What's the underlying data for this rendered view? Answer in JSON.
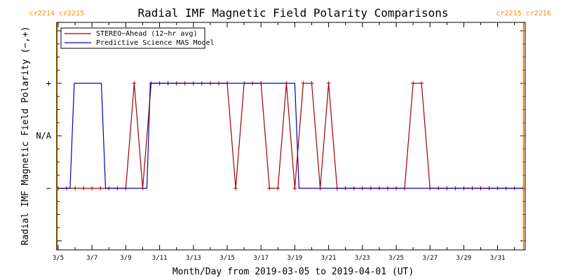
{
  "chart_data": {
    "type": "line",
    "title": "Radial IMF Magnetic Field Polarity Comparisons",
    "xlabel": "Month/Day from 2019-03-05 to 2019-04-01 (UT)",
    "ylabel": "Radial IMF Magnetic Field Polarity (−,+)",
    "ytick_labels": [
      "−",
      "N/A",
      "+"
    ],
    "ytick_values": [
      -1,
      0,
      1
    ],
    "ylim": [
      -2,
      2
    ],
    "xlim": [
      0,
      27.6
    ],
    "xtick_values": [
      0,
      2,
      4,
      6,
      8,
      10,
      12,
      14,
      16,
      18,
      20,
      22,
      24,
      26
    ],
    "xtick_labels": [
      "3/5",
      "3/7",
      "3/9",
      "3/11",
      "3/13",
      "3/15",
      "3/17",
      "3/19",
      "3/21",
      "3/23",
      "3/25",
      "3/27",
      "3/29",
      "3/31"
    ],
    "x_unit": "days from 2019-03-05",
    "carrington_markers": [
      {
        "x": 0,
        "label_left": "cr2214",
        "label_right": "cr2215",
        "side": "left"
      },
      {
        "x": 27.6,
        "label_left": "cr2215",
        "label_right": "cr2216",
        "side": "right"
      }
    ],
    "legend_position": "top-left",
    "series": [
      {
        "name": "STEREO−Ahead (12−hr avg)",
        "color": "#a00000",
        "marker": "+",
        "x": [
          0,
          0.5,
          1,
          1.5,
          2,
          2.5,
          3,
          3.5,
          4,
          4.5,
          5,
          5.5,
          6,
          6.5,
          7,
          7.5,
          8,
          8.5,
          9,
          9.5,
          10,
          10.5,
          11,
          11.5,
          12,
          12.5,
          13,
          13.5,
          14,
          14.5,
          15,
          15.5,
          16,
          16.5,
          17,
          17.5,
          18,
          18.5,
          19,
          19.5,
          20,
          20.5,
          21,
          21.5,
          22,
          22.5,
          23,
          23.5,
          24,
          24.5,
          25,
          25.5,
          26,
          26.5,
          27,
          27.5
        ],
        "values": [
          -1,
          -1,
          -1,
          -1,
          -1,
          -1,
          -1,
          -1,
          -1,
          1,
          -1,
          1,
          1,
          1,
          1,
          1,
          1,
          1,
          1,
          1,
          1,
          -1,
          1,
          1,
          1,
          -1,
          -1,
          1,
          -1,
          1,
          1,
          -1,
          1,
          -1,
          -1,
          -1,
          -1,
          -1,
          -1,
          -1,
          -1,
          -1,
          1,
          1,
          -1,
          -1,
          -1,
          -1,
          -1,
          -1,
          -1,
          -1,
          -1,
          -1,
          -1,
          -1
        ]
      },
      {
        "name": "Predictive Science MAS Model",
        "color": "#0000c0",
        "marker": "none",
        "x": [
          0,
          0.7,
          0.95,
          2.55,
          2.8,
          5.25,
          5.45,
          14.0,
          14.25,
          27.6
        ],
        "values": [
          -1,
          -1,
          1,
          1,
          -1,
          -1,
          1,
          1,
          -1,
          -1
        ]
      }
    ]
  }
}
